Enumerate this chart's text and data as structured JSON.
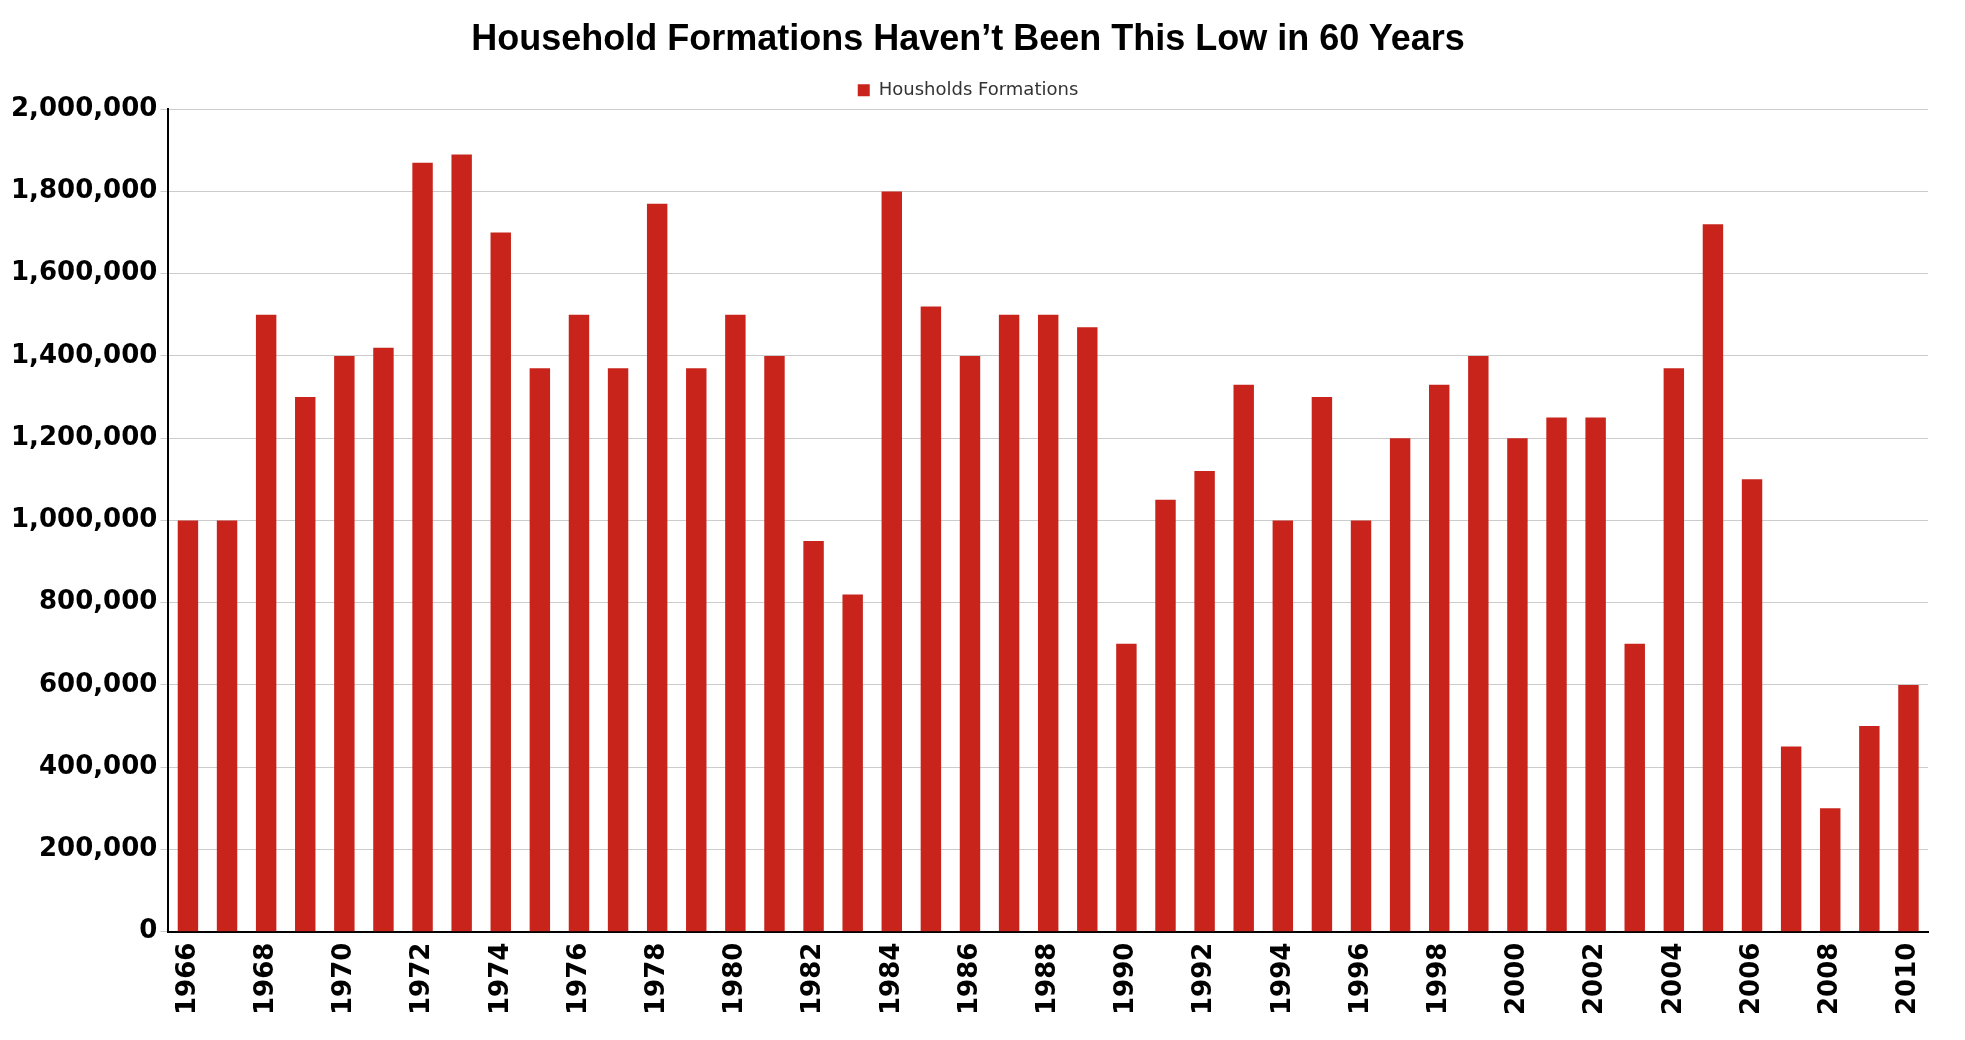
{
  "chart_data": {
    "type": "bar",
    "title": "Household Formations Haven’t Been This Low in 60 Years",
    "categories": [
      "1966",
      null,
      "1968",
      null,
      "1970",
      null,
      "1972",
      null,
      "1974",
      null,
      "1976",
      null,
      "1978",
      null,
      "1980",
      null,
      "1982",
      null,
      "1984",
      null,
      "1986",
      null,
      "1988",
      null,
      "1990",
      null,
      "1992",
      null,
      "1994",
      null,
      "1996",
      null,
      "1998",
      null,
      "2000",
      null,
      "2002",
      null,
      "2004",
      null,
      "2006",
      null,
      "2008",
      null,
      "2010"
    ],
    "series": [
      {
        "name": "Housholds Formations",
        "color": "#c8241c",
        "values": [
          1000000,
          1000000,
          1500000,
          1300000,
          1400000,
          1420000,
          1870000,
          1890000,
          1700000,
          1370000,
          1500000,
          1370000,
          1770000,
          1370000,
          1500000,
          1400000,
          950000,
          820000,
          1800000,
          1520000,
          1400000,
          1500000,
          1500000,
          1470000,
          700000,
          1050000,
          1120000,
          1330000,
          1000000,
          1300000,
          1000000,
          1200000,
          1330000,
          1400000,
          1200000,
          1250000,
          1250000,
          700000,
          1370000,
          1720000,
          1100000,
          450000,
          300000,
          500000,
          600000
        ]
      }
    ],
    "ylim": [
      0,
      2000000
    ],
    "yticks": [
      0,
      {
        "value": 200000,
        "label": "200,000"
      },
      {
        "value": 400000,
        "label": "400,000"
      },
      {
        "value": 600000,
        "label": "600,000"
      },
      {
        "value": 800000,
        "label": "800,000"
      },
      {
        "value": 1000000,
        "label": "1,000,000"
      },
      {
        "value": 1200000,
        "label": "1,200,000"
      },
      {
        "value": 1400000,
        "label": "1,400,000"
      },
      {
        "value": 1600000,
        "label": "1,600,000"
      },
      {
        "value": 1800000,
        "label": "1,800,000"
      },
      {
        "value": 2000000,
        "label": "2,000,000"
      }
    ],
    "grid": "y",
    "legend": "top"
  }
}
